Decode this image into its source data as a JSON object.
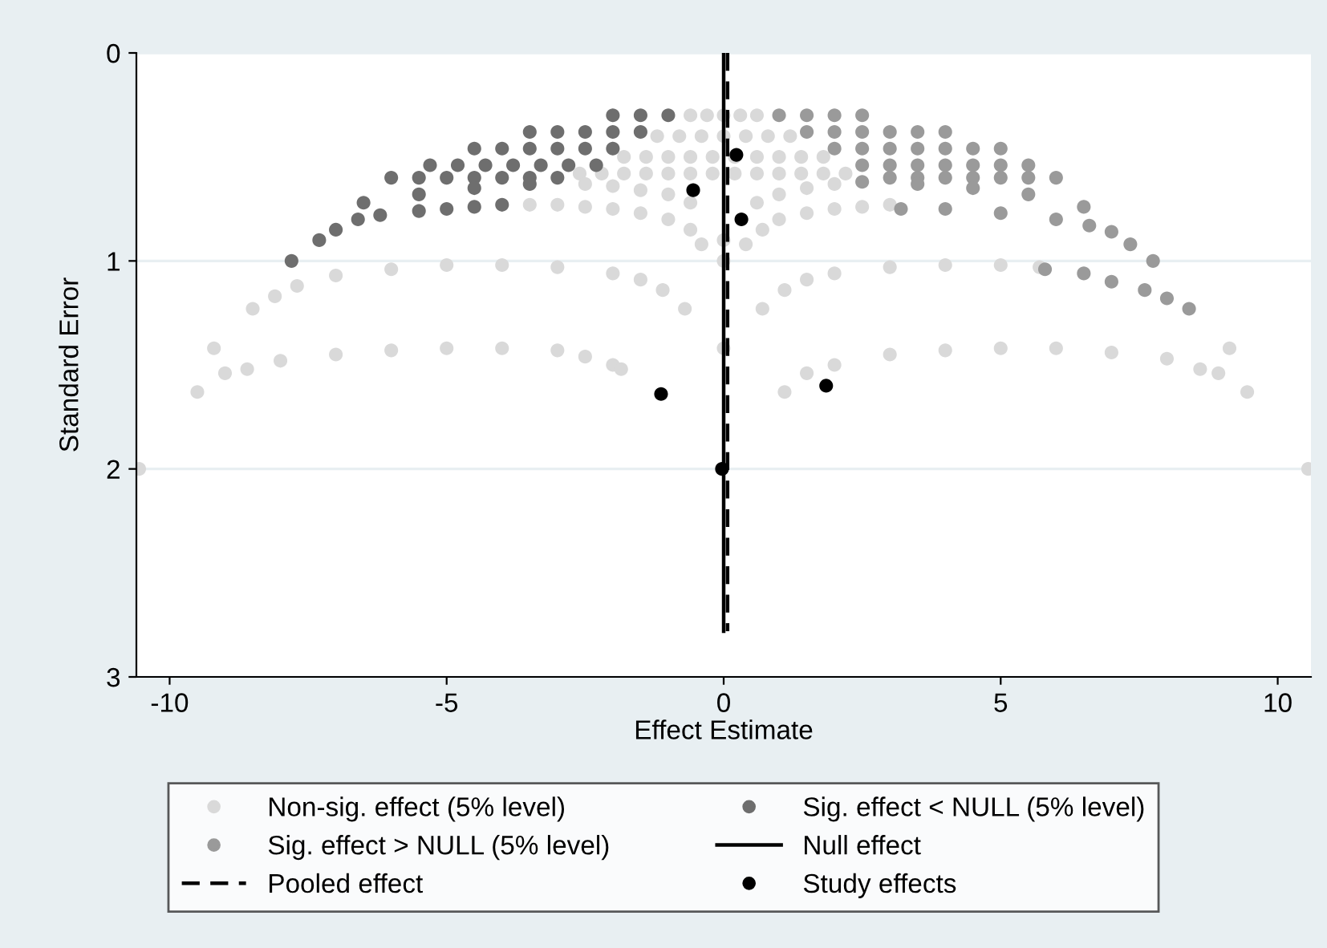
{
  "chart_data": {
    "type": "scatter",
    "xlabel": "Effect Estimate",
    "ylabel": "Standard Error",
    "xlim": [
      -10.6,
      10.6
    ],
    "xticks": [
      -10,
      -5,
      0,
      5,
      10
    ],
    "ylim": [
      3,
      0
    ],
    "yticks": [
      0,
      1,
      2,
      3
    ],
    "grid": "y",
    "legend": "bottom",
    "series": [
      {
        "name": "Non-sig. effect (5% level)",
        "marker": "circle",
        "color": "#d9d9d9",
        "x": [
          -0.6,
          -0.3,
          0,
          0.3,
          0.6,
          -1.2,
          -0.8,
          -0.4,
          0,
          0.4,
          0.8,
          1.2,
          -1.8,
          -1.4,
          -1,
          -0.6,
          -0.2,
          0.2,
          0.6,
          1,
          1.4,
          1.8,
          -2.6,
          -2.2,
          -1.8,
          -1.4,
          -1,
          -0.6,
          -0.2,
          0.2,
          0.6,
          1,
          1.4,
          1.8,
          2.2,
          -2.5,
          -2,
          -1.5,
          -1,
          -0.6,
          0.6,
          1,
          1.5,
          2,
          -3.5,
          -3,
          -2.5,
          -2,
          -1.5,
          -1,
          -0.6,
          -0.4,
          0.4,
          0.7,
          1,
          1.5,
          2,
          2.5,
          3,
          -8.5,
          -8.1,
          -7.7,
          -7,
          -6,
          -5,
          -4,
          -3,
          -2,
          -1.5,
          -1.1,
          -0.7,
          0.7,
          1.1,
          1.5,
          2,
          3,
          4,
          5,
          5.7,
          -9.5,
          -9.2,
          -9.0,
          -8.6,
          -8,
          -7,
          -6,
          -5,
          -4,
          -3,
          -2.5,
          -2,
          -1.85,
          1.1,
          1.5,
          2,
          3,
          4,
          5,
          6,
          7,
          8,
          8.6,
          8.93,
          9.13,
          9.45,
          0,
          0,
          0,
          -10.55,
          10.55
        ],
        "values": [
          0.3,
          0.3,
          0.3,
          0.3,
          0.3,
          0.4,
          0.4,
          0.4,
          0.4,
          0.4,
          0.4,
          0.4,
          0.5,
          0.5,
          0.5,
          0.5,
          0.5,
          0.5,
          0.5,
          0.5,
          0.5,
          0.5,
          0.58,
          0.58,
          0.58,
          0.58,
          0.58,
          0.58,
          0.58,
          0.58,
          0.58,
          0.58,
          0.58,
          0.58,
          0.58,
          0.63,
          0.64,
          0.66,
          0.68,
          0.72,
          0.72,
          0.68,
          0.65,
          0.63,
          0.73,
          0.73,
          0.74,
          0.75,
          0.77,
          0.8,
          0.85,
          0.92,
          0.92,
          0.85,
          0.8,
          0.77,
          0.75,
          0.74,
          0.73,
          1.23,
          1.17,
          1.12,
          1.07,
          1.04,
          1.02,
          1.02,
          1.03,
          1.06,
          1.09,
          1.14,
          1.23,
          1.23,
          1.14,
          1.09,
          1.06,
          1.03,
          1.02,
          1.02,
          1.03,
          1.63,
          1.42,
          1.54,
          1.52,
          1.48,
          1.45,
          1.43,
          1.42,
          1.42,
          1.43,
          1.46,
          1.5,
          1.52,
          1.63,
          1.54,
          1.5,
          1.45,
          1.43,
          1.42,
          1.42,
          1.44,
          1.47,
          1.52,
          1.54,
          1.42,
          1.63,
          0.9,
          1.0,
          1.42,
          2.0,
          2.0
        ]
      },
      {
        "name": "Sig. effect < NULL (5% level)",
        "marker": "circle",
        "color": "#6e6e6e",
        "x": [
          -1,
          -1.5,
          -2,
          -1.5,
          -2,
          -2.5,
          -3,
          -3.5,
          -2,
          -2.5,
          -3,
          -3.5,
          -4,
          -4.5,
          -2.3,
          -2.8,
          -3.3,
          -3.8,
          -4.3,
          -4.8,
          -5.3,
          -3,
          -3.5,
          -4,
          -4.5,
          -5,
          -5.5,
          -6,
          -7.8,
          -7.3,
          -7,
          -6.6,
          -6.2,
          -5.5,
          -5,
          -4.5,
          -4,
          -6.5,
          -5.5,
          -4.5,
          -3.5
        ],
        "values": [
          0.3,
          0.3,
          0.3,
          0.38,
          0.38,
          0.38,
          0.38,
          0.38,
          0.46,
          0.46,
          0.46,
          0.46,
          0.46,
          0.46,
          0.54,
          0.54,
          0.54,
          0.54,
          0.54,
          0.54,
          0.54,
          0.6,
          0.6,
          0.6,
          0.6,
          0.6,
          0.6,
          0.6,
          1.0,
          0.9,
          0.85,
          0.8,
          0.78,
          0.76,
          0.75,
          0.74,
          0.73,
          0.72,
          0.68,
          0.65,
          0.63
        ]
      },
      {
        "name": "Sig. effect > NULL (5% level)",
        "marker": "circle",
        "color": "#9a9a9a",
        "x": [
          1,
          1.5,
          2,
          2.5,
          1.5,
          2,
          2.5,
          3,
          3.5,
          4,
          2,
          2.5,
          3,
          3.5,
          4,
          4.5,
          5,
          2.5,
          3,
          3.5,
          4,
          4.5,
          5,
          5.5,
          3,
          3.5,
          4,
          4.5,
          5,
          5.5,
          6,
          2.5,
          3.5,
          4.5,
          5.5,
          6.5,
          3.2,
          4,
          5,
          6,
          6.6,
          7,
          7.34,
          7.75,
          5.8,
          6.5,
          7,
          7.6,
          8,
          8.4
        ],
        "values": [
          0.3,
          0.3,
          0.3,
          0.3,
          0.38,
          0.38,
          0.38,
          0.38,
          0.38,
          0.38,
          0.46,
          0.46,
          0.46,
          0.46,
          0.46,
          0.46,
          0.46,
          0.54,
          0.54,
          0.54,
          0.54,
          0.54,
          0.54,
          0.54,
          0.6,
          0.6,
          0.6,
          0.6,
          0.6,
          0.6,
          0.6,
          0.62,
          0.63,
          0.65,
          0.68,
          0.74,
          0.75,
          0.75,
          0.77,
          0.8,
          0.83,
          0.86,
          0.92,
          1.0,
          1.04,
          1.06,
          1.1,
          1.14,
          1.18,
          1.23
        ]
      },
      {
        "name": "Null effect",
        "type": "line",
        "marker": "none",
        "color": "#000000",
        "line_style": "solid",
        "x": [
          0,
          0
        ],
        "values": [
          0,
          2.78
        ]
      },
      {
        "name": "Pooled effect",
        "type": "line",
        "marker": "none",
        "color": "#000000",
        "line_style": "dashed",
        "x": [
          0.07,
          0.07
        ],
        "values": [
          0,
          2.78
        ]
      },
      {
        "name": "Study effects",
        "marker": "circle",
        "color": "#000000",
        "x": [
          -0.55,
          0.23,
          0.32,
          -1.13,
          1.85,
          -0.03
        ],
        "values": [
          0.66,
          0.49,
          0.8,
          1.64,
          1.6,
          2.0
        ]
      }
    ]
  }
}
